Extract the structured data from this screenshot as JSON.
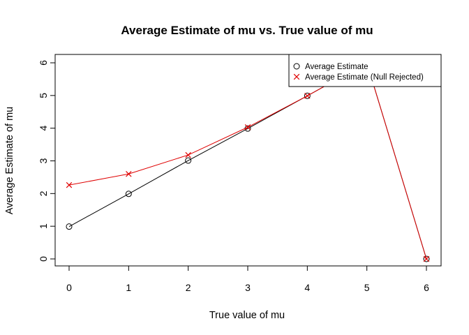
{
  "chart_data": {
    "type": "line",
    "title": "Average Estimate of mu vs. True value of mu",
    "xlabel": "True value of mu",
    "ylabel": "Average Estimate of mu",
    "xlim": [
      0,
      6
    ],
    "ylim": [
      0,
      6
    ],
    "x_ticks": [
      0,
      1,
      2,
      3,
      4,
      5,
      6
    ],
    "y_ticks": [
      0,
      1,
      2,
      3,
      4,
      5,
      6
    ],
    "grid": false,
    "legend_position": "top-right",
    "x": [
      0,
      1,
      2,
      3,
      4,
      5,
      6
    ],
    "series": [
      {
        "name": "Average Estimate",
        "color": "#000000",
        "marker": "circle",
        "values": [
          0.99,
          1.99,
          3.01,
          3.99,
          4.99,
          6.0,
          0.0
        ]
      },
      {
        "name": "Average Estimate (Null Rejected)",
        "color": "#DF0000",
        "marker": "cross",
        "values": [
          2.26,
          2.6,
          3.18,
          4.03,
          4.99,
          6.0,
          0.0
        ]
      }
    ]
  }
}
